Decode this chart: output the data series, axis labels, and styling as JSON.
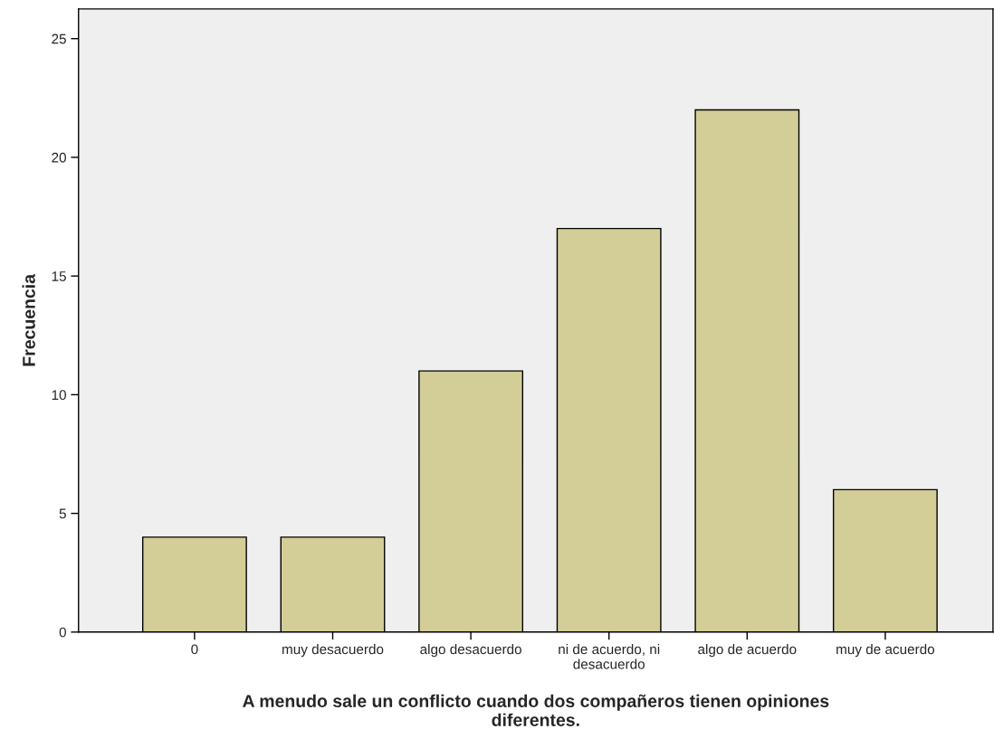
{
  "chart_data": {
    "type": "bar",
    "xlabel": "A menudo sale un conflicto cuando dos compañeros tienen opiniones\ndiferentes.",
    "ylabel": "Frecuencia",
    "categories": [
      "0",
      "muy desacuerdo",
      "algo desacuerdo",
      "ni de acuerdo, ni\ndesacuerdo",
      "algo de acuerdo",
      "muy de acuerdo"
    ],
    "values": [
      4,
      4,
      11,
      17,
      22,
      6
    ],
    "color": "#d3ce97",
    "ylim": [
      0,
      26.25
    ],
    "yticks": [
      0,
      5,
      10,
      15,
      20,
      25
    ],
    "grid": false
  }
}
